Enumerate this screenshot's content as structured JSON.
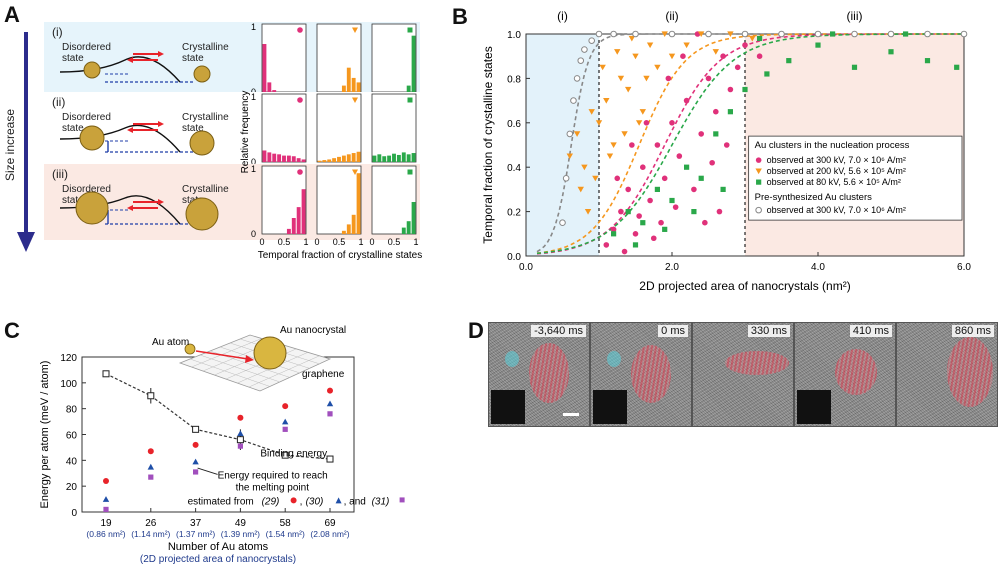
{
  "panelA": {
    "label": "A",
    "arrow_label": "Size increase",
    "rows": [
      {
        "roman": "(i)",
        "left": "Disordered state",
        "right": "Crystalline state",
        "bg": "#e6f4fb",
        "hist": [
          [
            0.75,
            0.15,
            0.03,
            0,
            0,
            0,
            0,
            0,
            0
          ],
          [
            0,
            0,
            0,
            0,
            0,
            0.1,
            0.38,
            0.22,
            0.15
          ],
          [
            0,
            0,
            0,
            0,
            0,
            0,
            0,
            0.1,
            0.88
          ]
        ]
      },
      {
        "roman": "(ii)",
        "left": "Disordered state",
        "right": "Crystalline state",
        "bg": "#ffffff",
        "hist": [
          [
            0.18,
            0.15,
            0.13,
            0.12,
            0.1,
            0.1,
            0.09,
            0.06,
            0.04
          ],
          [
            0.02,
            0.03,
            0.04,
            0.06,
            0.08,
            0.1,
            0.12,
            0.14,
            0.16
          ],
          [
            0.1,
            0.12,
            0.09,
            0.1,
            0.13,
            0.11,
            0.15,
            0.12,
            0.14
          ]
        ]
      },
      {
        "roman": "(iii)",
        "left": "Disordered state",
        "right": "Crystalline state",
        "bg": "#fbe9e3",
        "hist": [
          [
            0,
            0,
            0,
            0,
            0,
            0.08,
            0.25,
            0.42,
            0.7
          ],
          [
            0,
            0,
            0,
            0,
            0,
            0.05,
            0.15,
            0.3,
            0.95
          ],
          [
            0,
            0,
            0,
            0,
            0,
            0,
            0.1,
            0.2,
            0.5
          ]
        ]
      }
    ],
    "hist_colors": [
      "#e0317a",
      "#f5971e",
      "#2aa84a"
    ],
    "hist_ylabel": "Relative frequency",
    "hist_xlabel": "Temporal fraction of crystalline states",
    "hist_yticks": [
      "0",
      "1"
    ],
    "hist_xticks": [
      "0",
      "0.5",
      "1"
    ]
  },
  "panelB": {
    "label": "B",
    "chart_data": {
      "type": "scatter",
      "xlabel": "2D projected area of nanocrystals (nm²)",
      "ylabel": "Temporal fraction of crystalline states",
      "xlim": [
        0,
        6.0
      ],
      "ylim": [
        0,
        1.0
      ],
      "xticks": [
        "0.0",
        "2.0",
        "4.0",
        "6.0"
      ],
      "yticks": [
        "0.0",
        "0.2",
        "0.4",
        "0.6",
        "0.8",
        "1.0"
      ],
      "regions": [
        "(i)",
        "(ii)",
        "(iii)"
      ],
      "region_bounds": [
        1.0,
        3.0
      ],
      "legend_title_1": "Au clusters in the nucleation process",
      "legend_title_2": "Pre-synthesized Au clusters",
      "series": [
        {
          "name": "observed at 300 kV, 7.0 × 10⁶ A/m²",
          "color": "#e0317a",
          "marker": "circle",
          "points": [
            [
              1.1,
              0.05
            ],
            [
              1.2,
              0.12
            ],
            [
              1.3,
              0.2
            ],
            [
              1.4,
              0.3
            ],
            [
              1.5,
              0.1
            ],
            [
              1.6,
              0.4
            ],
            [
              1.7,
              0.25
            ],
            [
              1.8,
              0.5
            ],
            [
              1.9,
              0.35
            ],
            [
              2.0,
              0.6
            ],
            [
              2.1,
              0.45
            ],
            [
              2.2,
              0.7
            ],
            [
              2.3,
              0.3
            ],
            [
              2.4,
              0.55
            ],
            [
              2.5,
              0.8
            ],
            [
              2.6,
              0.65
            ],
            [
              2.7,
              0.9
            ],
            [
              2.8,
              0.75
            ],
            [
              2.9,
              0.85
            ],
            [
              3.0,
              0.95
            ],
            [
              3.2,
              0.9
            ],
            [
              3.5,
              1.0
            ],
            [
              1.35,
              0.02
            ],
            [
              1.55,
              0.18
            ],
            [
              1.75,
              0.08
            ],
            [
              2.05,
              0.22
            ],
            [
              2.45,
              0.15
            ],
            [
              2.55,
              0.42
            ],
            [
              2.65,
              0.2
            ],
            [
              1.25,
              0.35
            ],
            [
              1.45,
              0.5
            ],
            [
              1.65,
              0.6
            ],
            [
              1.95,
              0.8
            ],
            [
              2.15,
              0.9
            ],
            [
              2.35,
              1.0
            ],
            [
              1.85,
              0.15
            ],
            [
              2.75,
              0.5
            ]
          ]
        },
        {
          "name": "observed at 200 kV, 5.6 × 10⁵ A/m²",
          "color": "#f5971e",
          "marker": "triangle",
          "points": [
            [
              0.6,
              0.45
            ],
            [
              0.7,
              0.55
            ],
            [
              0.8,
              0.4
            ],
            [
              0.9,
              0.65
            ],
            [
              1.0,
              0.6
            ],
            [
              1.1,
              0.7
            ],
            [
              1.2,
              0.5
            ],
            [
              1.3,
              0.8
            ],
            [
              1.4,
              0.75
            ],
            [
              1.5,
              0.9
            ],
            [
              1.6,
              0.65
            ],
            [
              1.7,
              0.95
            ],
            [
              1.8,
              0.85
            ],
            [
              1.9,
              1.0
            ],
            [
              2.0,
              0.9
            ],
            [
              2.2,
              0.95
            ],
            [
              2.4,
              1.0
            ],
            [
              2.6,
              0.92
            ],
            [
              2.8,
              1.0
            ],
            [
              3.1,
              0.98
            ],
            [
              0.75,
              0.3
            ],
            [
              0.95,
              0.35
            ],
            [
              1.15,
              0.45
            ],
            [
              1.35,
              0.55
            ],
            [
              1.55,
              0.6
            ],
            [
              1.05,
              0.85
            ],
            [
              1.25,
              0.92
            ],
            [
              1.45,
              0.98
            ],
            [
              0.85,
              0.2
            ],
            [
              1.65,
              0.8
            ]
          ]
        },
        {
          "name": "observed at  80 kV, 5.6 × 10⁵ A/m²",
          "color": "#2aa84a",
          "marker": "square",
          "points": [
            [
              1.2,
              0.1
            ],
            [
              1.4,
              0.2
            ],
            [
              1.6,
              0.15
            ],
            [
              1.8,
              0.3
            ],
            [
              2.0,
              0.25
            ],
            [
              2.2,
              0.4
            ],
            [
              2.4,
              0.35
            ],
            [
              2.6,
              0.55
            ],
            [
              2.8,
              0.65
            ],
            [
              3.0,
              0.75
            ],
            [
              3.3,
              0.82
            ],
            [
              3.6,
              0.88
            ],
            [
              4.0,
              0.95
            ],
            [
              4.5,
              0.85
            ],
            [
              5.0,
              0.92
            ],
            [
              5.5,
              0.88
            ],
            [
              5.9,
              0.85
            ],
            [
              1.5,
              0.05
            ],
            [
              1.9,
              0.12
            ],
            [
              2.3,
              0.2
            ],
            [
              2.7,
              0.3
            ],
            [
              3.2,
              0.98
            ],
            [
              4.2,
              1.0
            ],
            [
              5.2,
              1.0
            ]
          ]
        },
        {
          "name": "observed at 300 kV, 7.0 × 10⁶ A/m²",
          "color": "#888888",
          "marker": "open-circle",
          "group": "pre",
          "points": [
            [
              0.5,
              0.15
            ],
            [
              0.55,
              0.35
            ],
            [
              0.6,
              0.55
            ],
            [
              0.65,
              0.7
            ],
            [
              0.7,
              0.8
            ],
            [
              0.75,
              0.88
            ],
            [
              0.8,
              0.93
            ],
            [
              0.9,
              0.97
            ],
            [
              1.0,
              1.0
            ],
            [
              1.2,
              1.0
            ],
            [
              1.5,
              1.0
            ],
            [
              2.0,
              1.0
            ],
            [
              2.5,
              1.0
            ],
            [
              3.0,
              1.0
            ],
            [
              3.5,
              1.0
            ],
            [
              4.0,
              1.0
            ],
            [
              4.5,
              1.0
            ],
            [
              5.0,
              1.0
            ],
            [
              5.5,
              1.0
            ],
            [
              6.0,
              1.0
            ]
          ]
        }
      ]
    }
  },
  "panelC": {
    "label": "C",
    "chart_data": {
      "type": "scatter",
      "xlabel": "Number of Au atoms",
      "xlabel2": "(2D projected area of nanocrystals)",
      "ylabel": "Energy per atom (meV / atom)",
      "categories": [
        "19",
        "26",
        "37",
        "49",
        "58",
        "69"
      ],
      "areas": [
        "(0.86 nm²)",
        "(1.14 nm²)",
        "(1.37 nm²)",
        "(1.39 nm²)",
        "(1.54 nm²)",
        "(2.08 nm²)"
      ],
      "ylim": [
        0,
        120
      ],
      "yticks": [
        "0",
        "20",
        "40",
        "60",
        "80",
        "100",
        "120"
      ],
      "binding": [
        107,
        90,
        64,
        56,
        44,
        41
      ],
      "binding_err": [
        1,
        6,
        1.5,
        8,
        1.5,
        1.5
      ],
      "series": [
        {
          "name": "(29)",
          "color": "#e8232a",
          "values": [
            24,
            47,
            52,
            73,
            82,
            94
          ]
        },
        {
          "name": "(30)",
          "color": "#1f4fa8",
          "values": [
            10,
            35,
            39,
            61,
            70,
            84
          ]
        },
        {
          "name": "(31)",
          "color": "#a14fbd",
          "values": [
            2,
            27,
            31,
            51,
            64,
            76
          ]
        }
      ],
      "annotations": {
        "binding": "Binding energy",
        "melting1": "Energy required to reach",
        "melting2": "the melting point",
        "est_prefix": "estimated from",
        "est_and": ", and",
        "au_atom": "Au atom",
        "au_nano": "Au nanocrystal",
        "graphene": "graphene"
      }
    }
  },
  "panelD": {
    "label": "D",
    "frames": [
      "-3,640 ms",
      "0 ms",
      "330 ms",
      "410 ms",
      "860 ms"
    ]
  }
}
